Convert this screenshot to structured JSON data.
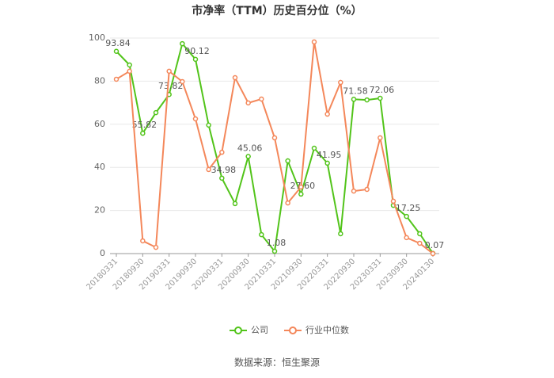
{
  "chart_data": {
    "type": "line",
    "title": "市净率（TTM）历史百分位（%）",
    "source": "数据来源：恒生聚源",
    "categories": [
      "20180331",
      null,
      "20180930",
      null,
      "20190331",
      null,
      "20190930",
      null,
      "20200331",
      null,
      "20200930",
      null,
      "20210331",
      null,
      "20210930",
      null,
      "20220331",
      null,
      "20220930",
      null,
      "20230331",
      null,
      "20230930",
      null,
      "20240130"
    ],
    "series": [
      {
        "name": "公司",
        "color": "#52c41a",
        "values": [
          93.84,
          87.5,
          55.82,
          65.4,
          73.82,
          97.4,
          90.12,
          59.6,
          34.98,
          23.2,
          45.06,
          8.8,
          1.08,
          43,
          27.6,
          48.9,
          41.95,
          9.2,
          71.58,
          71.3,
          72.06,
          22.4,
          17.25,
          9.2,
          0.07
        ],
        "value_labels": [
          "93.84",
          null,
          "55.82",
          null,
          "73.82",
          null,
          "90.12",
          null,
          "34.98",
          null,
          "45.06",
          null,
          "1.08",
          null,
          "27.60",
          null,
          "41.95",
          null,
          "71.58",
          null,
          "72.06",
          null,
          "17.25",
          null,
          "0.07"
        ]
      },
      {
        "name": "行业中位数",
        "color": "#f4875a",
        "values": [
          80.9,
          84.6,
          5.9,
          2.9,
          84.6,
          79.8,
          62.5,
          39,
          47,
          81.6,
          69.9,
          71.7,
          53.7,
          23.5,
          30.9,
          98.2,
          64.7,
          79.4,
          29,
          29.8,
          53.7,
          24.3,
          7.4,
          4.8,
          0
        ]
      }
    ],
    "ylim": [
      0,
      100
    ],
    "yticks": [
      0,
      20,
      40,
      60,
      80,
      100
    ],
    "grid": true
  }
}
